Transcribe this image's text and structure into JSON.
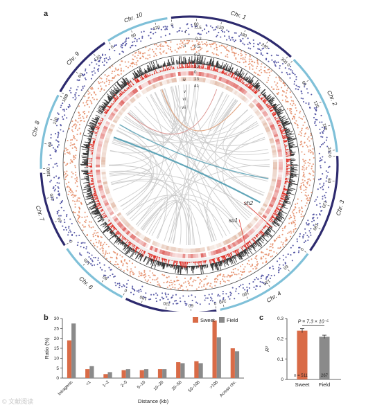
{
  "panels": {
    "a": "a",
    "b": "b",
    "c": "c"
  },
  "colors": {
    "chr_dark": "#2d2a6e",
    "chr_light": "#7fc0d8",
    "scatter_blue": "#3b3d96",
    "scatter_orange": "#e07a4f",
    "density": "#3a3a3a",
    "red_track": "#e0322a",
    "sweet": "#d96b47",
    "field": "#8a8a8a",
    "link_grey": "#c9c9c9",
    "link_teal": "#4f9bb0",
    "link_orange": "#e0a27c"
  },
  "circos": {
    "chromosomes": [
      {
        "name": "Chr. 1",
        "ticks": [
          "0",
          "60",
          "120",
          "180",
          "240",
          "300"
        ],
        "style": "dark"
      },
      {
        "name": "Chr. 2",
        "ticks": [
          "0",
          "60",
          "120",
          "180",
          "240"
        ],
        "style": "light"
      },
      {
        "name": "Chr. 3",
        "ticks": [
          "0",
          "60",
          "120",
          "180"
        ],
        "style": "dark"
      },
      {
        "name": "Chr. 4",
        "ticks": [
          "0",
          "60",
          "120",
          "180",
          "240"
        ],
        "style": "light"
      },
      {
        "name": "Chr. 5",
        "ticks": [
          "0",
          "60",
          "120",
          "180"
        ],
        "style": "dark"
      },
      {
        "name": "Chr. 6",
        "ticks": [
          "0",
          "60",
          "120"
        ],
        "style": "light"
      },
      {
        "name": "Chr. 7",
        "ticks": [
          "0",
          "60",
          "120",
          "180"
        ],
        "style": "dark"
      },
      {
        "name": "Chr. 8",
        "ticks": [
          "0",
          "60",
          "120",
          "180"
        ],
        "style": "light"
      },
      {
        "name": "Chr. 9",
        "ticks": [
          "0",
          "60",
          "120"
        ],
        "style": "dark"
      },
      {
        "name": "Chr. 10",
        "ticks": [
          "0",
          "60",
          "120"
        ],
        "style": "light"
      }
    ],
    "track_labels": [
      "i",
      "ii",
      "iii",
      "iv",
      "v",
      "vi",
      "vii"
    ],
    "scale_labels": [
      "-0.5",
      "-0.2",
      "0.5",
      "0.2",
      "13",
      "10",
      "0",
      "13",
      "41"
    ],
    "gene_labels": [
      "sh2",
      "su1"
    ]
  },
  "chart_data": [
    {
      "panel": "b",
      "type": "bar",
      "categories": [
        "Intragenic",
        "<1",
        "1–2",
        "2–5",
        "5–10",
        "10–20",
        "20–50",
        "50–100",
        ">100",
        "Across chr."
      ],
      "series": [
        {
          "name": "Sweet",
          "values": [
            19,
            4.5,
            2,
            4,
            4,
            4.5,
            8,
            8.5,
            29,
            15
          ]
        },
        {
          "name": "Field",
          "values": [
            27.5,
            6,
            3,
            4.5,
            4.5,
            4.5,
            7.5,
            7.5,
            20.5,
            13.5
          ]
        }
      ],
      "ylabel": "Ratio (%)",
      "xlabel": "Distance (kb)",
      "yticks": [
        "0",
        "5",
        "10",
        "15",
        "20",
        "25",
        "30"
      ],
      "ylim": [
        0,
        30
      ],
      "legend": "top-right"
    },
    {
      "panel": "c",
      "type": "bar",
      "categories": [
        "Sweet",
        "Field"
      ],
      "values": [
        0.24,
        0.21
      ],
      "errors": [
        0.01,
        0.008
      ],
      "counts": [
        "n = 511",
        "267"
      ],
      "ylabel": "R²",
      "yticks": [
        "0",
        "0.1",
        "0.2",
        "0.3"
      ],
      "ylim": [
        0,
        0.3
      ],
      "annotation": "P = 7.3 × 10⁻⁵"
    }
  ],
  "watermark": "© 文献阅读"
}
